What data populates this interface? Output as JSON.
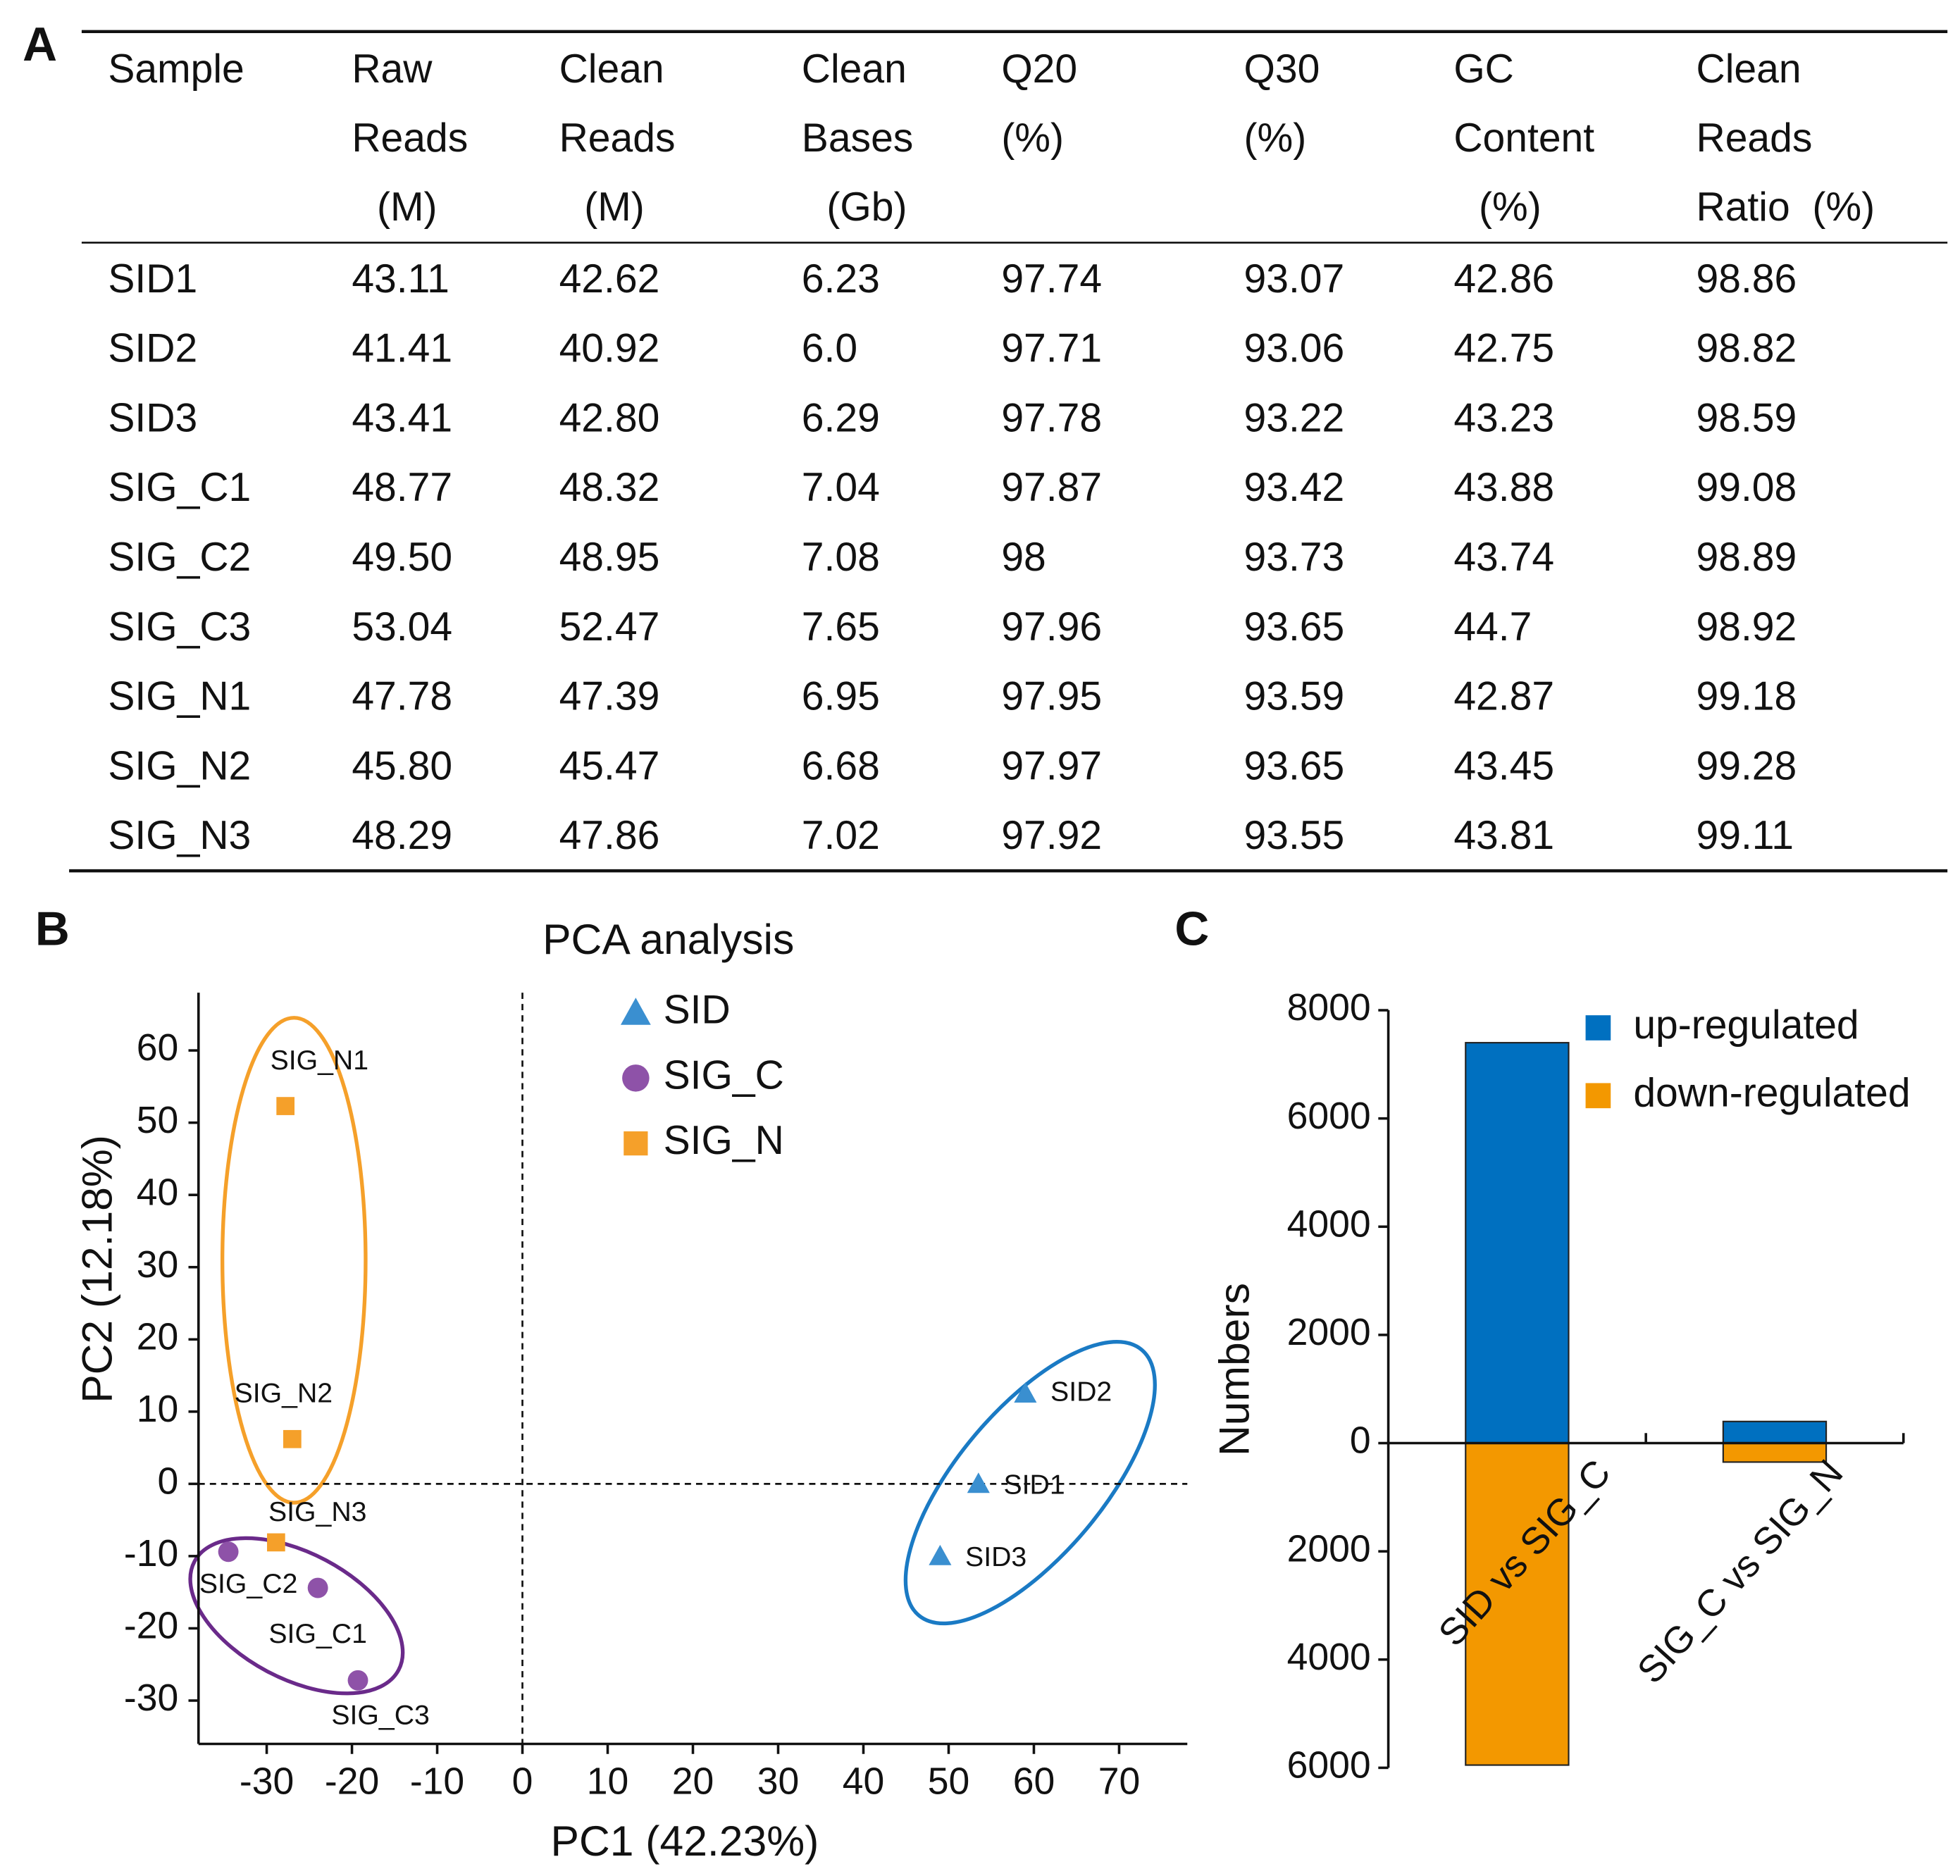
{
  "panels": [
    "A",
    "B",
    "C"
  ],
  "table": {
    "header": [
      [
        "Sample"
      ],
      [
        "Raw",
        "Reads",
        "(M)"
      ],
      [
        "Clean",
        "Reads",
        "(M)"
      ],
      [
        "Clean",
        "Bases",
        "(Gb)"
      ],
      [
        "Q20",
        "(%)"
      ],
      [
        "Q30",
        "(%)"
      ],
      [
        "GC",
        "Content",
        "(%)"
      ],
      [
        "Clean",
        "Reads",
        "Ratio  (%)"
      ]
    ],
    "rows": [
      [
        "SID1",
        "43.11",
        "42.62",
        "6.23",
        "97.74",
        "93.07",
        "42.86",
        "98.86"
      ],
      [
        "SID2",
        "41.41",
        "40.92",
        "6.0",
        "97.71",
        "93.06",
        "42.75",
        "98.82"
      ],
      [
        "SID3",
        "43.41",
        "42.80",
        "6.29",
        "97.78",
        "93.22",
        "43.23",
        "98.59"
      ],
      [
        "SIG_C1",
        "48.77",
        "48.32",
        "7.04",
        "97.87",
        "93.42",
        "43.88",
        "99.08"
      ],
      [
        "SIG_C2",
        "49.50",
        "48.95",
        "7.08",
        "98",
        "93.73",
        "43.74",
        "98.89"
      ],
      [
        "SIG_C3",
        "53.04",
        "52.47",
        "7.65",
        "97.96",
        "93.65",
        "44.7",
        "98.92"
      ],
      [
        "SIG_N1",
        "47.78",
        "47.39",
        "6.95",
        "97.95",
        "93.59",
        "42.87",
        "99.18"
      ],
      [
        "SIG_N2",
        "45.80",
        "45.47",
        "6.68",
        "97.97",
        "93.65",
        "43.45",
        "99.28"
      ],
      [
        "SIG_N3",
        "48.29",
        "47.86",
        "7.02",
        "97.92",
        "93.55",
        "43.81",
        "99.11"
      ]
    ]
  },
  "chart_data": [
    {
      "type": "scatter",
      "title": "PCA analysis",
      "x_label": "PC1 (42.23%)",
      "y_label": "PC2 (12.18%)",
      "xlim": [
        -38,
        78
      ],
      "xticks": [
        -30,
        -20,
        -10,
        0,
        10,
        20,
        30,
        40,
        50,
        60,
        70
      ],
      "ylim": [
        -36,
        68
      ],
      "yticks": [
        -30,
        -20,
        -10,
        0,
        10,
        20,
        30,
        40,
        50,
        60
      ],
      "legend": "upper center",
      "series": [
        {
          "name": "SID",
          "color": "#3a8fd0",
          "marker": "triangle",
          "x": [
            53.5,
            59,
            49
          ],
          "values": [
            0,
            12.5,
            -10
          ],
          "labels": [
            "SID1",
            "SID2",
            "SID3"
          ]
        },
        {
          "name": "SIG_C",
          "color": "#8e52a8",
          "marker": "circle",
          "x": [
            -24,
            -34.5,
            -19.3
          ],
          "values": [
            -14.4,
            -9.4,
            -27.2
          ],
          "labels": [
            "SIG_C1",
            "SIG_C2",
            "SIG_C3"
          ]
        },
        {
          "name": "SIG_N",
          "color": "#f5a02a",
          "marker": "square",
          "x": [
            -27.8,
            -27,
            -28.9
          ],
          "values": [
            52.3,
            6.2,
            -8.1
          ],
          "labels": [
            "SIG_N1",
            "SIG_N2",
            "SIG_N3"
          ]
        }
      ]
    },
    {
      "type": "bar",
      "y_label": "Numbers",
      "categories": [
        "SID vs SIG_C",
        "SIG_C vs SIG_N"
      ],
      "ylim": [
        -6000,
        8000
      ],
      "yticks": [
        8000,
        6000,
        4000,
        2000,
        0,
        {
          "value": -2000,
          "label": "2000"
        },
        {
          "value": -4000,
          "label": "4000"
        },
        {
          "value": -6000,
          "label": "6000"
        }
      ],
      "legend": "upper right",
      "series": [
        {
          "name": "up-regulated",
          "color": "#0070c0",
          "values": [
            7400,
            400
          ]
        },
        {
          "name": "down-regulated",
          "color": "#f39800",
          "values": [
            -5950,
            -350
          ]
        }
      ]
    }
  ]
}
